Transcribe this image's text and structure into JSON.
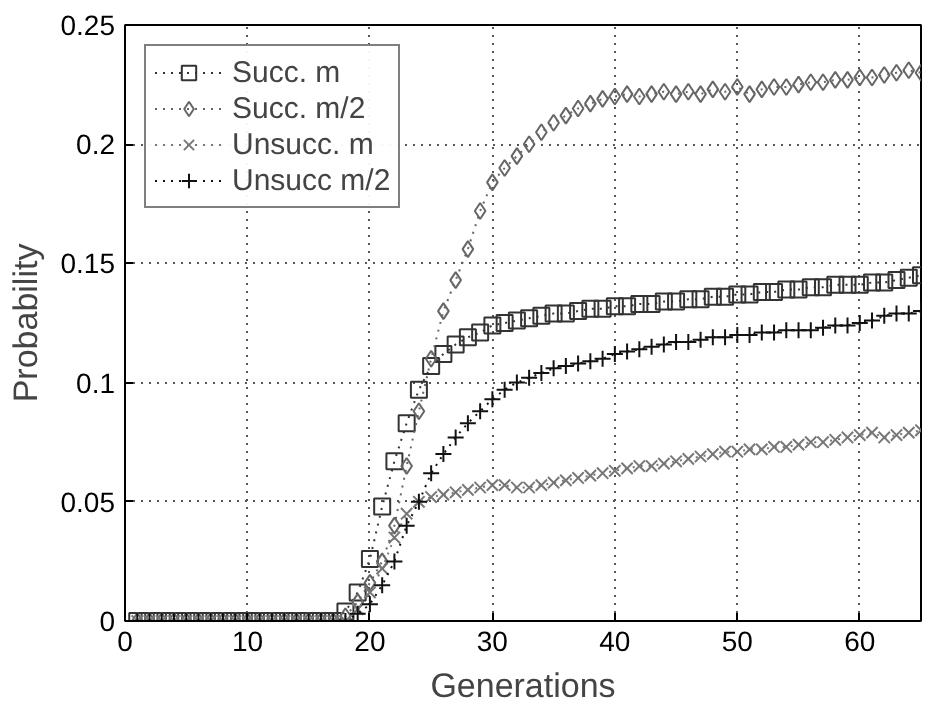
{
  "chart_data": {
    "type": "line",
    "xlabel": "Generations",
    "ylabel": "Probability",
    "x": [
      1,
      2,
      3,
      4,
      5,
      6,
      7,
      8,
      9,
      10,
      11,
      12,
      13,
      14,
      15,
      16,
      17,
      18,
      19,
      20,
      21,
      22,
      23,
      24,
      25,
      26,
      27,
      28,
      29,
      30,
      31,
      32,
      33,
      34,
      35,
      36,
      37,
      38,
      39,
      40,
      41,
      42,
      43,
      44,
      45,
      46,
      47,
      48,
      49,
      50,
      51,
      52,
      53,
      54,
      55,
      56,
      57,
      58,
      59,
      60,
      61,
      62,
      63,
      64,
      65
    ],
    "series": [
      {
        "name": "Succ. m",
        "color": "#333333",
        "marker": "square",
        "values": [
          0,
          0,
          0,
          0,
          0,
          0,
          0,
          0,
          0,
          0,
          0,
          0,
          0,
          0,
          0,
          0,
          0,
          0.004,
          0.012,
          0.026,
          0.048,
          0.067,
          0.083,
          0.097,
          0.107,
          0.112,
          0.116,
          0.119,
          0.121,
          0.124,
          0.125,
          0.126,
          0.127,
          0.128,
          0.129,
          0.129,
          0.13,
          0.131,
          0.131,
          0.132,
          0.132,
          0.133,
          0.133,
          0.134,
          0.134,
          0.135,
          0.135,
          0.136,
          0.136,
          0.137,
          0.137,
          0.138,
          0.138,
          0.139,
          0.139,
          0.14,
          0.14,
          0.141,
          0.141,
          0.141,
          0.142,
          0.142,
          0.143,
          0.144,
          0.145
        ]
      },
      {
        "name": "Succ. m/2",
        "color": "#666666",
        "marker": "diamond",
        "values": [
          0,
          0,
          0,
          0,
          0,
          0,
          0,
          0,
          0,
          0,
          0,
          0,
          0,
          0,
          0,
          0,
          0,
          0.002,
          0.008,
          0.016,
          0.025,
          0.04,
          0.065,
          0.088,
          0.11,
          0.13,
          0.143,
          0.156,
          0.172,
          0.184,
          0.19,
          0.195,
          0.2,
          0.205,
          0.209,
          0.212,
          0.215,
          0.217,
          0.219,
          0.22,
          0.221,
          0.22,
          0.221,
          0.222,
          0.221,
          0.222,
          0.221,
          0.223,
          0.222,
          0.224,
          0.221,
          0.223,
          0.224,
          0.224,
          0.225,
          0.226,
          0.226,
          0.227,
          0.227,
          0.228,
          0.228,
          0.229,
          0.23,
          0.231,
          0.23
        ]
      },
      {
        "name": "Unsucc. m",
        "color": "#777777",
        "marker": "x",
        "values": [
          0,
          0,
          0,
          0,
          0,
          0,
          0,
          0,
          0,
          0,
          0,
          0,
          0,
          0,
          0,
          0,
          0,
          0,
          0.005,
          0.012,
          0.022,
          0.035,
          0.045,
          0.05,
          0.052,
          0.053,
          0.054,
          0.055,
          0.056,
          0.057,
          0.057,
          0.056,
          0.056,
          0.057,
          0.058,
          0.059,
          0.06,
          0.061,
          0.062,
          0.063,
          0.064,
          0.065,
          0.065,
          0.066,
          0.067,
          0.068,
          0.069,
          0.07,
          0.071,
          0.071,
          0.072,
          0.072,
          0.073,
          0.073,
          0.074,
          0.075,
          0.075,
          0.076,
          0.077,
          0.078,
          0.079,
          0.077,
          0.078,
          0.079,
          0.08
        ]
      },
      {
        "name": "Unsucc m/2",
        "color": "#111111",
        "marker": "cross",
        "values": [
          0,
          0,
          0,
          0,
          0,
          0,
          0,
          0,
          0,
          0,
          0,
          0,
          0,
          0,
          0,
          0,
          0,
          0,
          0.003,
          0.007,
          0.015,
          0.025,
          0.04,
          0.05,
          0.062,
          0.07,
          0.077,
          0.083,
          0.088,
          0.093,
          0.097,
          0.1,
          0.102,
          0.104,
          0.106,
          0.107,
          0.108,
          0.109,
          0.11,
          0.112,
          0.113,
          0.114,
          0.115,
          0.116,
          0.117,
          0.117,
          0.118,
          0.119,
          0.119,
          0.12,
          0.12,
          0.121,
          0.121,
          0.122,
          0.122,
          0.122,
          0.123,
          0.124,
          0.124,
          0.125,
          0.126,
          0.128,
          0.129,
          0.129,
          0.13
        ]
      }
    ],
    "xlim": [
      0,
      65
    ],
    "xticks": [
      0,
      10,
      20,
      30,
      40,
      50,
      60
    ],
    "ylim": [
      0,
      0.25
    ],
    "yticks": [
      0,
      0.05,
      0.1,
      0.15,
      0.2,
      0.25
    ],
    "grid": true,
    "legend": "top left",
    "line_style": "dotted"
  }
}
